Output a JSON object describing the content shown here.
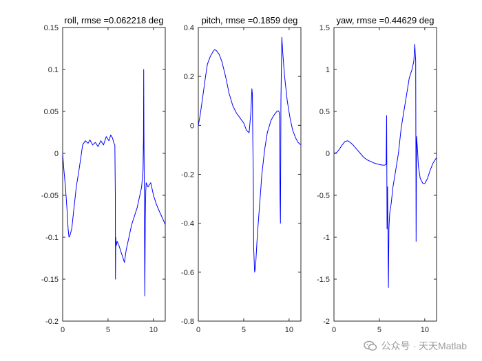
{
  "chart_data": [
    {
      "type": "line",
      "title": "roll, rmse =0.062218 deg",
      "xlim": [
        0,
        11.3
      ],
      "ylim": [
        -0.2,
        0.15
      ],
      "xticks": [
        0,
        5,
        10
      ],
      "xtick_labels": [
        "0",
        "5",
        "10"
      ],
      "yticks": [
        0.15,
        0.1,
        0.05,
        0,
        -0.05,
        -0.1,
        -0.15,
        -0.2
      ],
      "ytick_labels": [
        "0.15",
        "0.1",
        "0.05",
        "0",
        "-0.05",
        "-0.1",
        "-0.15",
        "-0.2"
      ],
      "grid": false,
      "color": "#0000ff",
      "series": [
        {
          "x": [
            0,
            0.1,
            0.3,
            0.5,
            0.6,
            0.7,
            0.8,
            1.0,
            1.2,
            1.5,
            1.8,
            2.0,
            2.2,
            2.5,
            2.8,
            3.0,
            3.3,
            3.6,
            3.9,
            4.2,
            4.5,
            4.8,
            5.1,
            5.3,
            5.5,
            5.65,
            5.75,
            5.8,
            5.82,
            5.85,
            5.9,
            6.0,
            6.2,
            6.5,
            6.8,
            7.0,
            7.3,
            7.6,
            7.9,
            8.2,
            8.5,
            8.7,
            8.85,
            8.9,
            8.93,
            8.95,
            9.0,
            9.05,
            9.1,
            9.15,
            9.2,
            9.4,
            9.7,
            10.0,
            10.3,
            10.6,
            10.9,
            11.1,
            11.3
          ],
          "y": [
            0,
            -0.015,
            -0.04,
            -0.07,
            -0.09,
            -0.1,
            -0.098,
            -0.09,
            -0.07,
            -0.04,
            -0.02,
            -0.005,
            0.01,
            0.015,
            0.012,
            0.016,
            0.01,
            0.013,
            0.008,
            0.015,
            0.01,
            0.02,
            0.015,
            0.022,
            0.018,
            0.012,
            0.01,
            -0.05,
            -0.15,
            -0.1,
            -0.11,
            -0.105,
            -0.11,
            -0.12,
            -0.13,
            -0.115,
            -0.1,
            -0.085,
            -0.075,
            -0.065,
            -0.05,
            -0.04,
            -0.02,
            0.02,
            0.1,
            0.03,
            -0.06,
            -0.17,
            -0.08,
            -0.045,
            -0.035,
            -0.04,
            -0.035,
            -0.05,
            -0.06,
            -0.068,
            -0.075,
            -0.08,
            -0.085
          ]
        }
      ]
    },
    {
      "type": "line",
      "title": "pitch, rmse =0.1859 deg",
      "xlim": [
        0,
        11.3
      ],
      "ylim": [
        -0.8,
        0.4
      ],
      "xticks": [
        0,
        5,
        10
      ],
      "xtick_labels": [
        "0",
        "5",
        "10"
      ],
      "yticks": [
        0.4,
        0.2,
        0,
        -0.2,
        -0.4,
        -0.6,
        -0.8
      ],
      "ytick_labels": [
        "0.4",
        "0.2",
        "0",
        "-0.2",
        "-0.4",
        "-0.6",
        "-0.8"
      ],
      "grid": false,
      "color": "#0000ff",
      "series": [
        {
          "x": [
            0,
            0.2,
            0.5,
            0.8,
            1.0,
            1.3,
            1.6,
            1.8,
            2.0,
            2.3,
            2.6,
            3.0,
            3.4,
            3.8,
            4.2,
            4.6,
            5.0,
            5.3,
            5.6,
            5.8,
            5.9,
            5.95,
            6.0,
            6.05,
            6.1,
            6.2,
            6.3,
            6.5,
            6.8,
            7.0,
            7.3,
            7.6,
            8.0,
            8.3,
            8.6,
            8.8,
            8.9,
            8.95,
            9.0,
            9.05,
            9.1,
            9.2,
            9.3,
            9.5,
            9.8,
            10.1,
            10.4,
            10.7,
            11.0,
            11.3
          ],
          "y": [
            0,
            0.04,
            0.12,
            0.2,
            0.25,
            0.28,
            0.3,
            0.31,
            0.305,
            0.29,
            0.26,
            0.2,
            0.13,
            0.08,
            0.05,
            0.03,
            0.01,
            -0.02,
            -0.03,
            0.06,
            0.15,
            0.13,
            -0.05,
            -0.2,
            -0.5,
            -0.6,
            -0.58,
            -0.45,
            -0.3,
            -0.2,
            -0.1,
            -0.03,
            0.02,
            0.04,
            0.055,
            0.06,
            0.055,
            0.03,
            -0.3,
            -0.4,
            0.1,
            0.36,
            0.3,
            0.2,
            0.1,
            0.03,
            -0.02,
            -0.05,
            -0.07,
            -0.08
          ]
        }
      ]
    },
    {
      "type": "line",
      "title": "yaw, rmse =0.44629 deg",
      "xlim": [
        0,
        11.3
      ],
      "ylim": [
        -2,
        1.5
      ],
      "xticks": [
        0,
        5,
        10
      ],
      "xtick_labels": [
        "0",
        "5",
        "10"
      ],
      "yticks": [
        1.5,
        1,
        0.5,
        0,
        -0.5,
        -1,
        -1.5,
        -2
      ],
      "ytick_labels": [
        "1.5",
        "1",
        "0.5",
        "0",
        "-0.5",
        "-1",
        "-1.5",
        "-2"
      ],
      "grid": false,
      "color": "#0000ff",
      "series": [
        {
          "x": [
            0,
            0.3,
            0.6,
            0.9,
            1.2,
            1.5,
            1.8,
            2.1,
            2.5,
            2.9,
            3.3,
            3.7,
            4.1,
            4.5,
            4.9,
            5.3,
            5.6,
            5.75,
            5.8,
            5.85,
            5.9,
            5.95,
            6.0,
            6.05,
            6.1,
            6.15,
            6.3,
            6.5,
            6.8,
            7.1,
            7.4,
            7.7,
            8.0,
            8.3,
            8.6,
            8.8,
            8.9,
            8.95,
            9.0,
            9.05,
            9.1,
            9.2,
            9.3,
            9.5,
            9.8,
            10.0,
            10.3,
            10.6,
            10.9,
            11.3
          ],
          "y": [
            0,
            0.01,
            0.05,
            0.1,
            0.14,
            0.15,
            0.13,
            0.1,
            0.05,
            0.0,
            -0.05,
            -0.08,
            -0.1,
            -0.12,
            -0.13,
            -0.14,
            -0.14,
            -0.13,
            0.45,
            -0.9,
            -0.4,
            -1.0,
            -1.6,
            -0.9,
            -0.8,
            -0.7,
            -0.6,
            -0.4,
            -0.2,
            0.0,
            0.3,
            0.5,
            0.7,
            0.9,
            1.0,
            1.1,
            1.3,
            1.2,
            1.1,
            -1.05,
            0.2,
            0.05,
            -0.15,
            -0.3,
            -0.36,
            -0.36,
            -0.3,
            -0.2,
            -0.12,
            -0.05
          ]
        }
      ]
    }
  ],
  "watermark": {
    "text": "公众号 · 天天Matlab",
    "icon": "wechat-icon",
    "color": "#9a9a9a"
  }
}
